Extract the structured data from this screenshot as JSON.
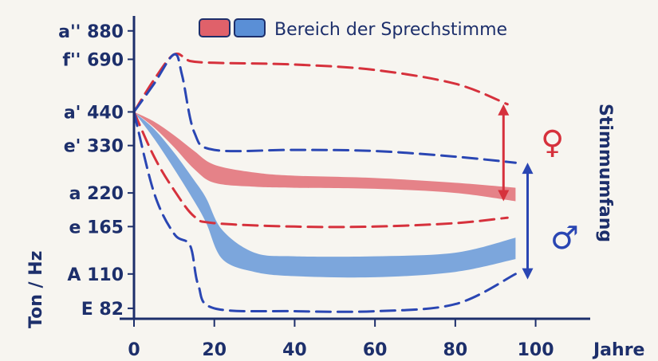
{
  "chart_data": {
    "type": "area",
    "title": "",
    "legend": {
      "label": "Bereich der Sprechstimme",
      "swatches": [
        "#e0616a",
        "#5a8fd6"
      ]
    },
    "xlabel": "Jahre",
    "ylabel": "Ton / Hz",
    "x_ticks": [
      "0",
      "20",
      "40",
      "60",
      "80",
      "100"
    ],
    "y_ticks": [
      {
        "label": "a'' 880",
        "hz": 880
      },
      {
        "label": "f'' 690",
        "hz": 690
      },
      {
        "label": "a' 440",
        "hz": 440
      },
      {
        "label": "e' 330",
        "hz": 330
      },
      {
        "label": "a 220",
        "hz": 220
      },
      {
        "label": "e 165",
        "hz": 165
      },
      {
        "label": "A 110",
        "hz": 110
      },
      {
        "label": "E 82",
        "hz": 82
      }
    ],
    "xlim": [
      0,
      112
    ],
    "ylim_hz": [
      75,
      1000
    ],
    "y_scale": "log",
    "right_label": "Stimmumfang",
    "female_symbol": "♀",
    "male_symbol": "♂",
    "colors": {
      "female": "#d6313c",
      "male": "#2a46b3",
      "axis": "#1d2f6b"
    },
    "series": [
      {
        "name": "♀ Sprechstimme",
        "kind": "band",
        "color": "#e0616a",
        "x": [
          0,
          5,
          10,
          15,
          20,
          30,
          40,
          60,
          80,
          95
        ],
        "upper": [
          440,
          405,
          360,
          315,
          280,
          262,
          255,
          250,
          240,
          230
        ],
        "lower": [
          440,
          385,
          325,
          270,
          240,
          232,
          230,
          228,
          220,
          205
        ]
      },
      {
        "name": "♂ Sprechstimme",
        "kind": "band",
        "color": "#5a8fd6",
        "x": [
          0,
          5,
          10,
          15,
          18,
          22,
          30,
          40,
          60,
          80,
          95
        ],
        "upper": [
          440,
          380,
          310,
          245,
          210,
          160,
          132,
          128,
          128,
          132,
          150
        ],
        "lower": [
          440,
          350,
          270,
          205,
          170,
          125,
          112,
          108,
          107,
          112,
          125
        ]
      },
      {
        "name": "♀ Stimmumfang oben",
        "kind": "dashed",
        "color": "#d6313c",
        "x": [
          0,
          5,
          10,
          14,
          20,
          40,
          60,
          80,
          93
        ],
        "values": [
          440,
          580,
          720,
          680,
          670,
          660,
          630,
          560,
          470
        ]
      },
      {
        "name": "♀ Stimmumfang unten",
        "kind": "dashed",
        "color": "#d6313c",
        "x": [
          0,
          5,
          10,
          15,
          20,
          40,
          60,
          80,
          93
        ],
        "values": [
          440,
          300,
          225,
          180,
          170,
          165,
          165,
          170,
          178
        ]
      },
      {
        "name": "♂ Stimmumfang oben",
        "kind": "dashed",
        "color": "#2a46b3",
        "x": [
          0,
          5,
          10,
          12,
          15,
          20,
          40,
          60,
          80,
          95
        ],
        "values": [
          440,
          560,
          720,
          600,
          370,
          318,
          318,
          315,
          300,
          285
        ]
      },
      {
        "name": "♂ Stimmumfang unten",
        "kind": "dashed",
        "color": "#2a46b3",
        "x": [
          0,
          5,
          10,
          14,
          16,
          20,
          40,
          60,
          80,
          95
        ],
        "values": [
          440,
          220,
          155,
          140,
          100,
          82,
          80,
          80,
          85,
          110
        ]
      }
    ],
    "range_arrows": [
      {
        "name": "♀",
        "x": 92,
        "from": 205,
        "to": 470,
        "color": "#d6313c"
      },
      {
        "name": "♂",
        "x": 98,
        "from": 105,
        "to": 285,
        "color": "#2a46b3"
      }
    ]
  }
}
